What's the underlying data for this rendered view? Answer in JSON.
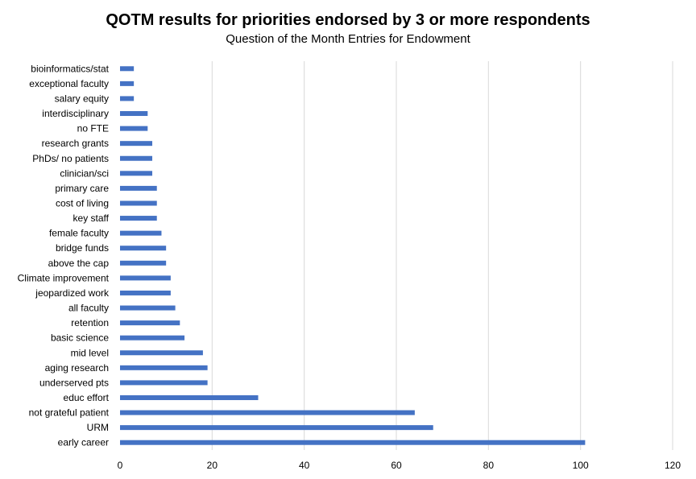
{
  "chart_data": {
    "type": "bar",
    "orientation": "horizontal",
    "title": "QOTM results for priorities endorsed by 3 or more respondents",
    "subtitle": "Question of the Month Entries for Endowment",
    "xlabel": "",
    "ylabel": "",
    "xlim": [
      0,
      120
    ],
    "xticks": [
      0,
      20,
      40,
      60,
      80,
      100,
      120
    ],
    "grid": "vertical",
    "legend": "none",
    "bar_color": "#4472C4",
    "grid_color": "#D9D9D9",
    "categories": [
      "bioinformatics/stat",
      "exceptional faculty",
      "salary equity",
      "interdisciplinary",
      "no FTE",
      "research grants",
      "PhDs/ no patients",
      "clinician/sci",
      "primary care",
      "cost of living",
      "key staff",
      "female faculty",
      "bridge funds",
      "above the cap",
      "Climate improvement",
      "jeopardized work",
      "all faculty",
      "retention",
      "basic science",
      "mid level",
      "aging research",
      "underserved pts",
      "educ effort",
      "not grateful patient",
      "URM",
      "early career"
    ],
    "values": [
      3,
      3,
      3,
      6,
      6,
      7,
      7,
      7,
      8,
      8,
      8,
      9,
      10,
      10,
      11,
      11,
      12,
      13,
      14,
      18,
      19,
      19,
      30,
      64,
      68,
      101
    ]
  }
}
